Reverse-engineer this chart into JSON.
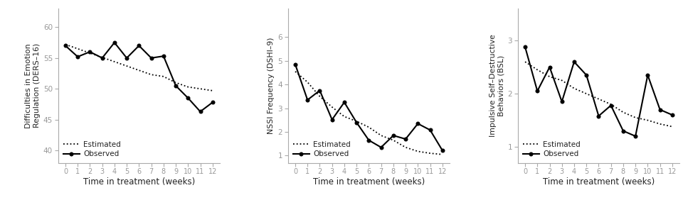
{
  "weeks": [
    0,
    1,
    2,
    3,
    4,
    5,
    6,
    7,
    8,
    9,
    10,
    11,
    12
  ],
  "panel1": {
    "ylabel": "Difficulties in Emotion\nRegulation (DERS–16)",
    "ylim": [
      38,
      63
    ],
    "yticks": [
      40,
      45,
      50,
      55,
      60
    ],
    "observed": [
      57.0,
      55.2,
      56.0,
      55.0,
      57.5,
      55.0,
      57.0,
      55.0,
      55.3,
      50.5,
      48.5,
      46.3,
      47.8
    ],
    "estimated": [
      57.2,
      56.5,
      55.8,
      55.1,
      54.4,
      53.7,
      53.0,
      52.3,
      52.0,
      51.0,
      50.3,
      50.0,
      49.7
    ]
  },
  "panel2": {
    "ylabel": "NSSI Frequency (DSHI–9)",
    "ylim": [
      0.7,
      7.2
    ],
    "yticks": [
      1,
      2,
      3,
      4,
      5,
      6
    ],
    "observed": [
      4.85,
      3.35,
      3.75,
      2.52,
      3.25,
      2.4,
      1.65,
      1.35,
      1.85,
      1.7,
      2.35,
      2.08,
      1.22
    ],
    "estimated": [
      4.55,
      4.1,
      3.5,
      3.05,
      2.65,
      2.45,
      2.2,
      1.85,
      1.65,
      1.35,
      1.18,
      1.1,
      1.05
    ]
  },
  "panel3": {
    "ylabel": "Impulsive Self–Destructive\nBehaviors (BSL)",
    "ylim": [
      0.7,
      3.6
    ],
    "yticks": [
      1,
      2,
      3
    ],
    "observed": [
      2.88,
      2.05,
      2.5,
      1.85,
      2.6,
      2.35,
      1.58,
      1.78,
      1.3,
      1.2,
      2.35,
      1.7,
      1.6
    ],
    "estimated": [
      2.6,
      2.45,
      2.32,
      2.25,
      2.1,
      2.0,
      1.9,
      1.8,
      1.65,
      1.55,
      1.5,
      1.43,
      1.38
    ]
  },
  "xlabel": "Time in treatment (weeks)",
  "legend_estimated": "Estimated",
  "legend_observed": "Observed",
  "line_color": "#000000",
  "axis_color": "#aaaaaa",
  "tick_label_color": "#999999",
  "background_color": "#ffffff"
}
